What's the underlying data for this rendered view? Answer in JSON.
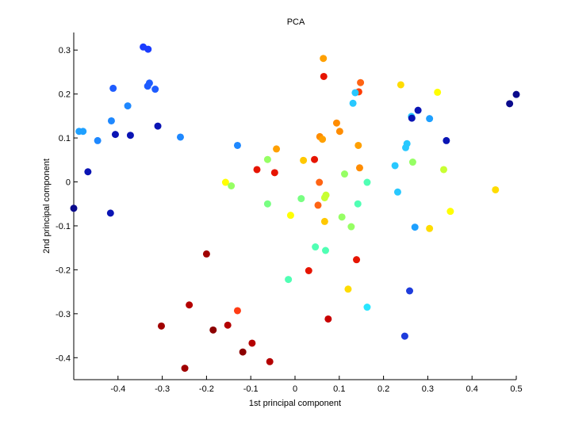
{
  "chart_data": {
    "type": "scatter",
    "title": "PCA",
    "xlabel": "1st principal component",
    "ylabel": "2nd principal component",
    "xlim": [
      -0.5,
      0.5
    ],
    "ylim": [
      -0.45,
      0.34
    ],
    "xticks": [
      -0.4,
      -0.3,
      -0.2,
      -0.1,
      0,
      0.1,
      0.2,
      0.3,
      0.4,
      0.5
    ],
    "xtick_labels": [
      "-0.4",
      "-0.3",
      "-0.2",
      "-0.1",
      "0",
      "0.1",
      "0.2",
      "0.3",
      "0.4",
      "0.5"
    ],
    "yticks": [
      0.3,
      0.2,
      0.1,
      0,
      -0.1,
      -0.2,
      -0.3,
      -0.4
    ],
    "ytick_labels": [
      "0.3",
      "0.2",
      "0.1",
      "0",
      "-0.1",
      "-0.2",
      "-0.3",
      "-0.4"
    ],
    "grid": false,
    "points": [
      {
        "x": -0.343,
        "y": 0.307,
        "color": "#1a3cff"
      },
      {
        "x": -0.332,
        "y": 0.302,
        "color": "#1a3cff"
      },
      {
        "x": -0.329,
        "y": 0.225,
        "color": "#1e5cff"
      },
      {
        "x": -0.333,
        "y": 0.218,
        "color": "#1e5cff"
      },
      {
        "x": -0.316,
        "y": 0.211,
        "color": "#1e5cff"
      },
      {
        "x": -0.411,
        "y": 0.213,
        "color": "#1e5cff"
      },
      {
        "x": -0.378,
        "y": 0.173,
        "color": "#1e88ff"
      },
      {
        "x": -0.415,
        "y": 0.139,
        "color": "#1e88ff"
      },
      {
        "x": -0.31,
        "y": 0.127,
        "color": "#0a14b4"
      },
      {
        "x": -0.406,
        "y": 0.108,
        "color": "#0a14b4"
      },
      {
        "x": -0.372,
        "y": 0.106,
        "color": "#0a14b4"
      },
      {
        "x": -0.479,
        "y": 0.115,
        "color": "#1ea0ff"
      },
      {
        "x": -0.488,
        "y": 0.115,
        "color": "#1ea0ff"
      },
      {
        "x": -0.446,
        "y": 0.094,
        "color": "#1e88ff"
      },
      {
        "x": -0.259,
        "y": 0.102,
        "color": "#1e88ff"
      },
      {
        "x": -0.468,
        "y": 0.023,
        "color": "#0a14b4"
      },
      {
        "x": -0.5,
        "y": -0.06,
        "color": "#0a0a8c"
      },
      {
        "x": -0.417,
        "y": -0.071,
        "color": "#0a14b4"
      },
      {
        "x": -0.13,
        "y": 0.083,
        "color": "#1e88ff"
      },
      {
        "x": 0.064,
        "y": 0.281,
        "color": "#ffa000"
      },
      {
        "x": 0.065,
        "y": 0.24,
        "color": "#e61400"
      },
      {
        "x": 0.148,
        "y": 0.226,
        "color": "#ff6414"
      },
      {
        "x": 0.144,
        "y": 0.205,
        "color": "#ff3c00"
      },
      {
        "x": 0.136,
        "y": 0.203,
        "color": "#28c8ff"
      },
      {
        "x": 0.131,
        "y": 0.179,
        "color": "#28c8ff"
      },
      {
        "x": 0.239,
        "y": 0.221,
        "color": "#ffdc00"
      },
      {
        "x": 0.322,
        "y": 0.204,
        "color": "#ffff00"
      },
      {
        "x": 0.278,
        "y": 0.163,
        "color": "#0a14b4"
      },
      {
        "x": 0.263,
        "y": 0.149,
        "color": "#28c8ff"
      },
      {
        "x": 0.264,
        "y": 0.145,
        "color": "#0a14b4"
      },
      {
        "x": 0.304,
        "y": 0.144,
        "color": "#1ea0ff"
      },
      {
        "x": 0.094,
        "y": 0.134,
        "color": "#ff8c00"
      },
      {
        "x": 0.101,
        "y": 0.115,
        "color": "#ff8c00"
      },
      {
        "x": 0.056,
        "y": 0.103,
        "color": "#ff8c00"
      },
      {
        "x": 0.062,
        "y": 0.097,
        "color": "#ffa000"
      },
      {
        "x": 0.143,
        "y": 0.083,
        "color": "#ffa000"
      },
      {
        "x": 0.253,
        "y": 0.087,
        "color": "#28c8ff"
      },
      {
        "x": 0.25,
        "y": 0.078,
        "color": "#28c8ff"
      },
      {
        "x": 0.342,
        "y": 0.094,
        "color": "#0a14b4"
      },
      {
        "x": 0.485,
        "y": 0.178,
        "color": "#0a0a8c"
      },
      {
        "x": 0.5,
        "y": 0.199,
        "color": "#0a0a8c"
      },
      {
        "x": -0.042,
        "y": 0.075,
        "color": "#ffa000"
      },
      {
        "x": -0.062,
        "y": 0.051,
        "color": "#96ff64"
      },
      {
        "x": 0.019,
        "y": 0.049,
        "color": "#ffc800"
      },
      {
        "x": 0.044,
        "y": 0.051,
        "color": "#e61400"
      },
      {
        "x": -0.086,
        "y": 0.028,
        "color": "#e61400"
      },
      {
        "x": -0.046,
        "y": 0.021,
        "color": "#e61400"
      },
      {
        "x": 0.146,
        "y": 0.032,
        "color": "#ff8c00"
      },
      {
        "x": 0.112,
        "y": 0.018,
        "color": "#96ff64"
      },
      {
        "x": 0.226,
        "y": 0.037,
        "color": "#28c8ff"
      },
      {
        "x": 0.266,
        "y": 0.045,
        "color": "#96ff64"
      },
      {
        "x": 0.336,
        "y": 0.028,
        "color": "#c8ff32"
      },
      {
        "x": -0.157,
        "y": -0.001,
        "color": "#ffff00"
      },
      {
        "x": -0.144,
        "y": -0.009,
        "color": "#96ff64"
      },
      {
        "x": 0.055,
        "y": -0.001,
        "color": "#ff6414"
      },
      {
        "x": 0.163,
        "y": -0.001,
        "color": "#50ffb4"
      },
      {
        "x": 0.232,
        "y": -0.023,
        "color": "#28c8ff"
      },
      {
        "x": 0.453,
        "y": -0.018,
        "color": "#ffdc00"
      },
      {
        "x": 0.014,
        "y": -0.038,
        "color": "#78ff82"
      },
      {
        "x": 0.07,
        "y": -0.03,
        "color": "#c8ff32"
      },
      {
        "x": 0.067,
        "y": -0.036,
        "color": "#c8ff32"
      },
      {
        "x": -0.062,
        "y": -0.05,
        "color": "#78ff82"
      },
      {
        "x": 0.052,
        "y": -0.053,
        "color": "#ff6414"
      },
      {
        "x": 0.142,
        "y": -0.05,
        "color": "#50ffb4"
      },
      {
        "x": 0.351,
        "y": -0.067,
        "color": "#ffff00"
      },
      {
        "x": -0.01,
        "y": -0.076,
        "color": "#ffff00"
      },
      {
        "x": 0.106,
        "y": -0.08,
        "color": "#96ff64"
      },
      {
        "x": 0.067,
        "y": -0.09,
        "color": "#ffc800"
      },
      {
        "x": 0.127,
        "y": -0.102,
        "color": "#96ff64"
      },
      {
        "x": 0.271,
        "y": -0.103,
        "color": "#1ea0ff"
      },
      {
        "x": 0.304,
        "y": -0.106,
        "color": "#ffdc00"
      },
      {
        "x": 0.046,
        "y": -0.148,
        "color": "#50ffb4"
      },
      {
        "x": 0.069,
        "y": -0.156,
        "color": "#50ffb4"
      },
      {
        "x": 0.139,
        "y": -0.177,
        "color": "#e61400"
      },
      {
        "x": 0.031,
        "y": -0.202,
        "color": "#e61400"
      },
      {
        "x": -0.015,
        "y": -0.222,
        "color": "#50ffb4"
      },
      {
        "x": -0.2,
        "y": -0.164,
        "color": "#a00000"
      },
      {
        "x": 0.12,
        "y": -0.244,
        "color": "#ffdc00"
      },
      {
        "x": 0.259,
        "y": -0.248,
        "color": "#1e3cdc"
      },
      {
        "x": 0.163,
        "y": -0.285,
        "color": "#28e6ff"
      },
      {
        "x": -0.239,
        "y": -0.28,
        "color": "#b40000"
      },
      {
        "x": -0.13,
        "y": -0.293,
        "color": "#ff3c14"
      },
      {
        "x": 0.075,
        "y": -0.312,
        "color": "#c80000"
      },
      {
        "x": -0.302,
        "y": -0.328,
        "color": "#a00000"
      },
      {
        "x": -0.152,
        "y": -0.326,
        "color": "#b40000"
      },
      {
        "x": -0.185,
        "y": -0.337,
        "color": "#8c0000"
      },
      {
        "x": 0.248,
        "y": -0.351,
        "color": "#1e3cdc"
      },
      {
        "x": -0.097,
        "y": -0.367,
        "color": "#b40000"
      },
      {
        "x": -0.118,
        "y": -0.387,
        "color": "#8c0000"
      },
      {
        "x": -0.057,
        "y": -0.409,
        "color": "#b40000"
      },
      {
        "x": -0.249,
        "y": -0.424,
        "color": "#a00000"
      }
    ]
  }
}
